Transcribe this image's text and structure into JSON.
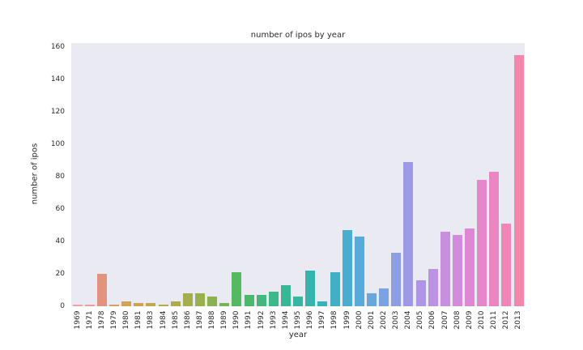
{
  "plot_bg": "#eaeaf2",
  "chart_data": {
    "type": "bar",
    "title": "number of ipos by year",
    "xlabel": "year",
    "ylabel": "number of ipos",
    "legend": "none",
    "grid": false,
    "ylim": [
      0,
      162
    ],
    "yticks": [
      0,
      20,
      40,
      60,
      80,
      100,
      120,
      140,
      160
    ],
    "categories": [
      "1969",
      "1971",
      "1978",
      "1979",
      "1980",
      "1981",
      "1983",
      "1984",
      "1985",
      "1986",
      "1987",
      "1988",
      "1989",
      "1990",
      "1991",
      "1992",
      "1993",
      "1994",
      "1995",
      "1996",
      "1997",
      "1998",
      "1999",
      "2000",
      "2001",
      "2002",
      "2003",
      "2004",
      "2005",
      "2006",
      "2007",
      "2008",
      "2009",
      "2010",
      "2011",
      "2012",
      "2013"
    ],
    "values": [
      1,
      1,
      20,
      1,
      3,
      2,
      2,
      1,
      3,
      8,
      8,
      6,
      2,
      21,
      7,
      7,
      9,
      13,
      6,
      22,
      3,
      21,
      47,
      43,
      8,
      11,
      33,
      89,
      16,
      23,
      46,
      44,
      48,
      78,
      83,
      51,
      155
    ],
    "bar_colors": [
      "#f0a3a9",
      "#eda099",
      "#e29380",
      "#dd9c64",
      "#d5a156",
      "#cba54e",
      "#c2a84d",
      "#b9aa4b",
      "#b0ac49",
      "#a5ae4c",
      "#99b04f",
      "#8bb252",
      "#76b556",
      "#55b95f",
      "#4ab96e",
      "#43b87c",
      "#3db88a",
      "#38b797",
      "#36b6a3",
      "#35b4ae",
      "#38b2ba",
      "#40b0c5",
      "#4aadcf",
      "#58aad8",
      "#68a6de",
      "#7ba2e3",
      "#8e9ee5",
      "#9e99e6",
      "#ae95e5",
      "#bc92e2",
      "#c88fdf",
      "#d38bdb",
      "#de88d5",
      "#e687cc",
      "#ec86c2",
      "#ef86b7",
      "#f187ab"
    ]
  }
}
